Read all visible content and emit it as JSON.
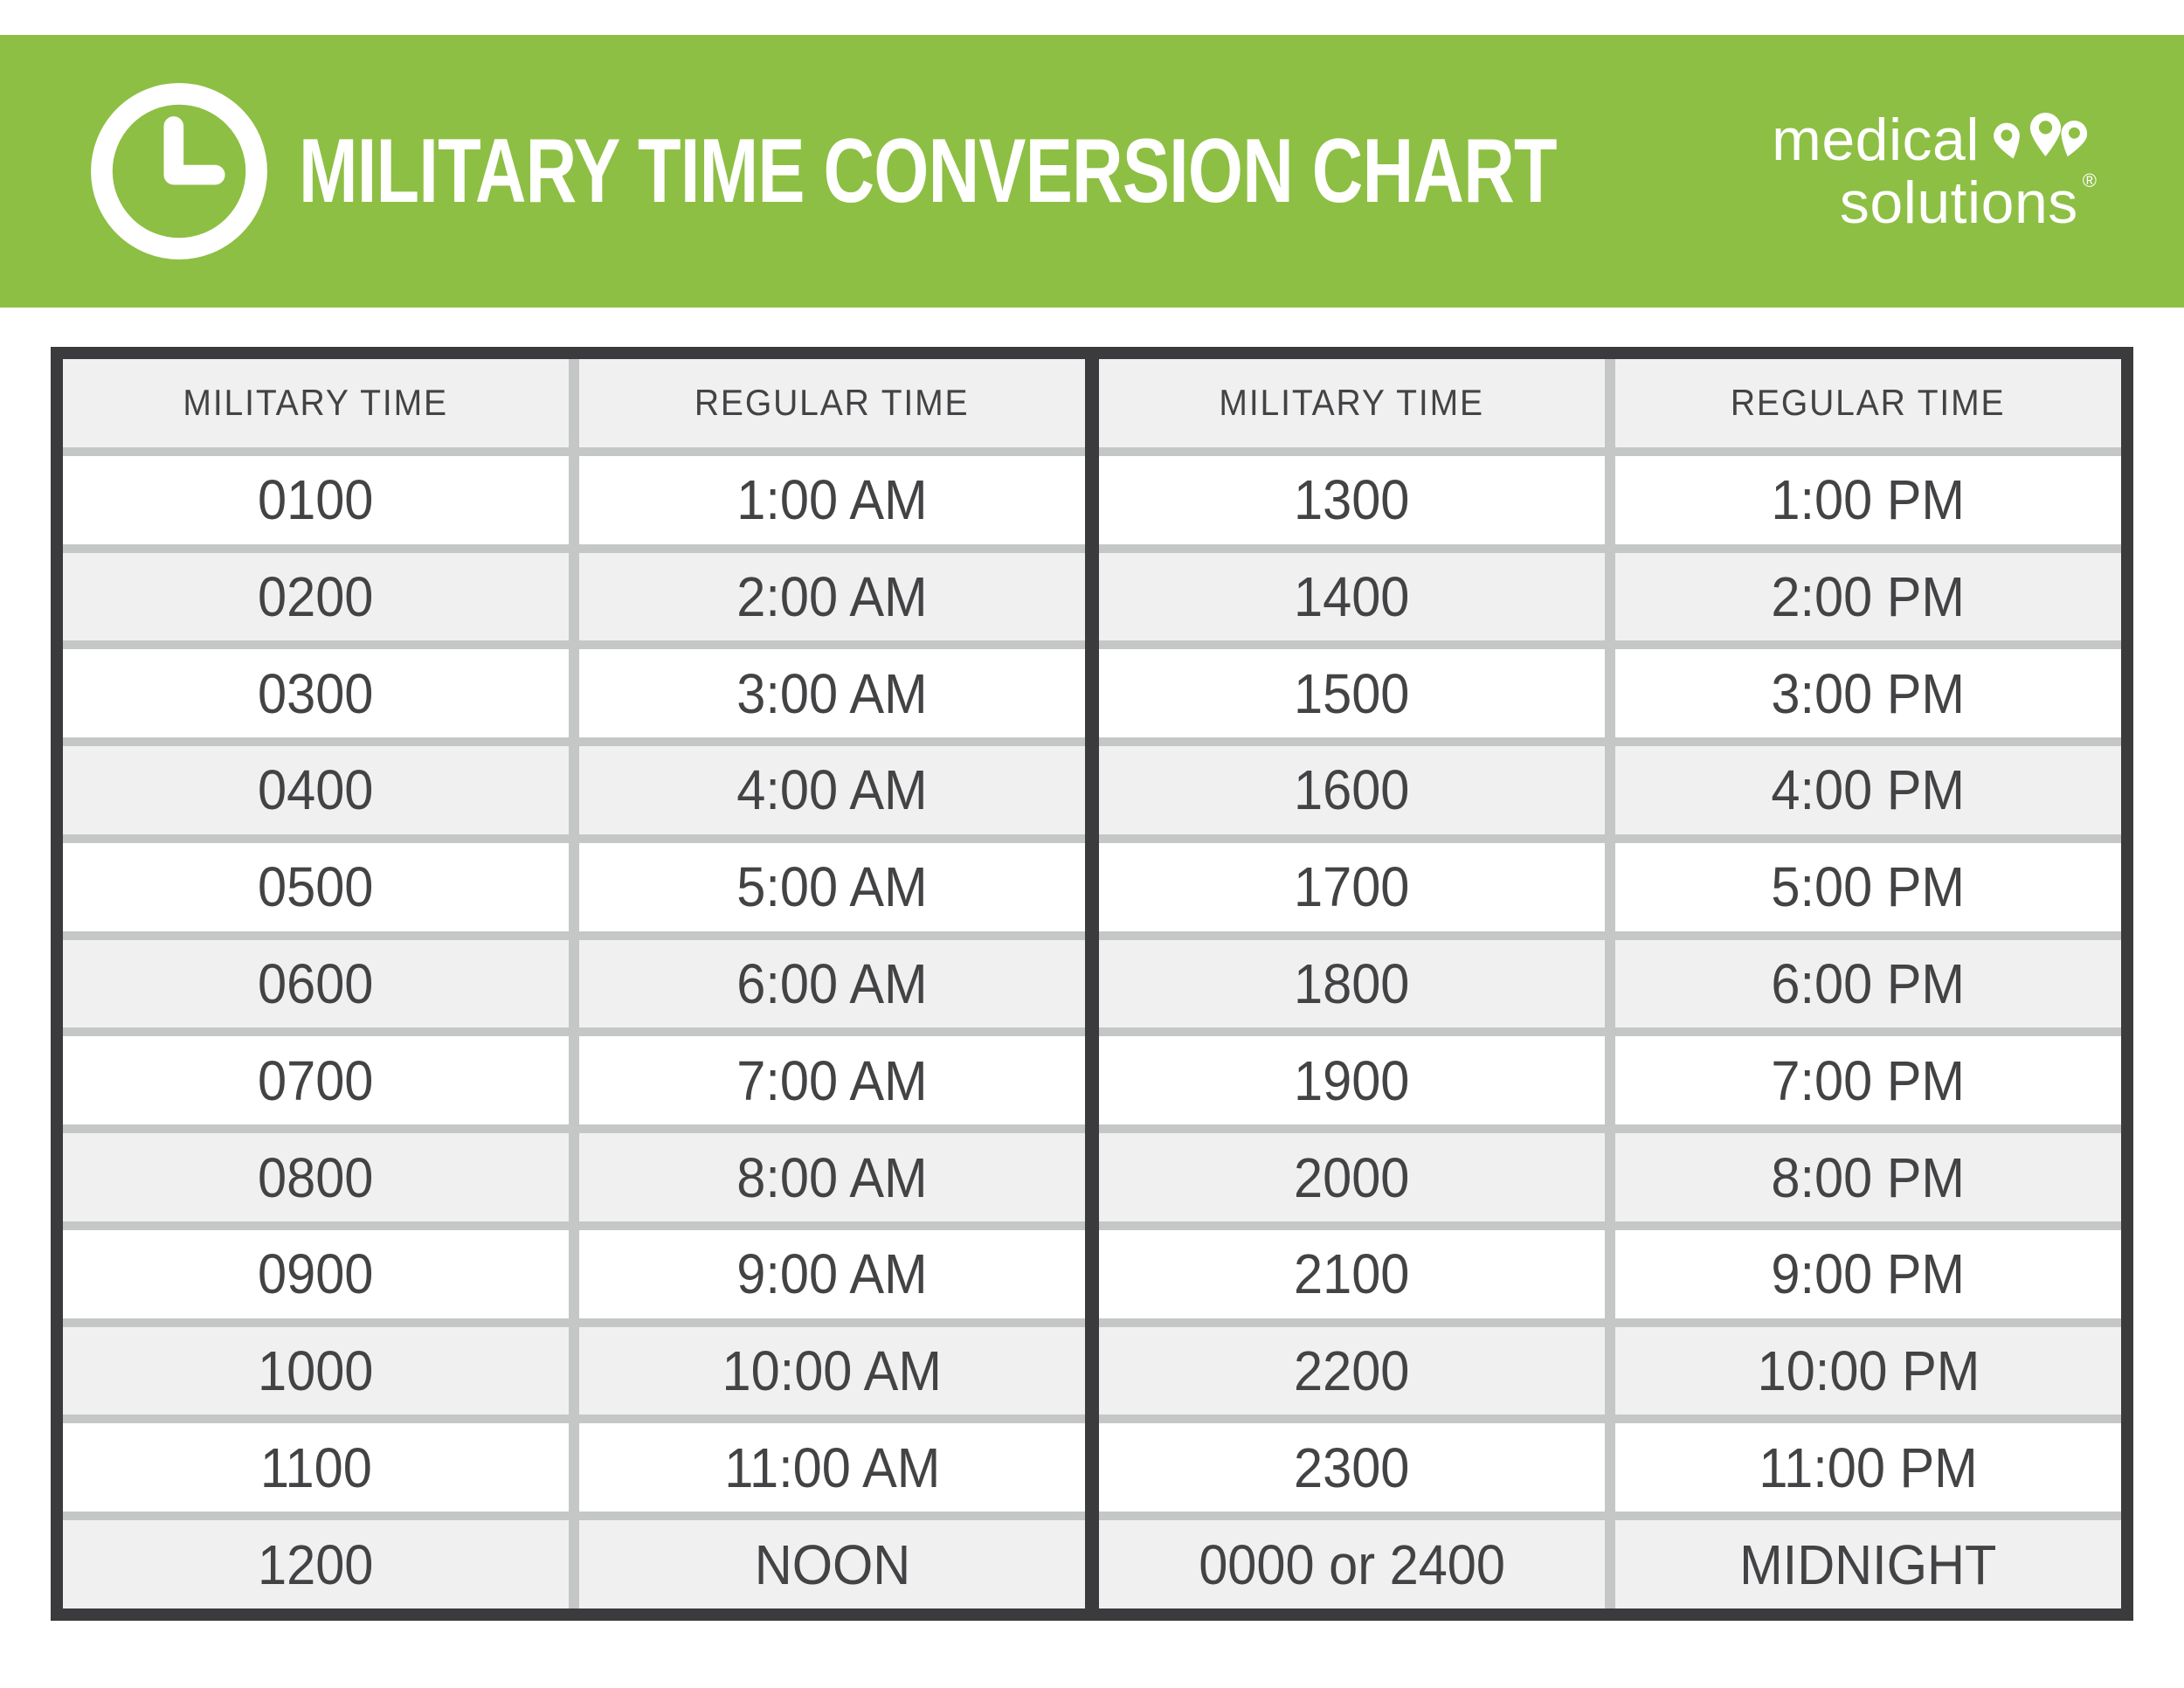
{
  "header": {
    "title": "MILITARY TIME CONVERSION CHART",
    "logo": {
      "line1": "medical",
      "line2": "solutions",
      "registered": "®"
    }
  },
  "colors": {
    "green": "#8dbf44",
    "dark": "#3b3b3d",
    "grid": "#c5c6c6",
    "cell_alt": "#f0f0f1",
    "text": "#434345",
    "white": "#ffffff"
  },
  "chart_data": {
    "type": "table",
    "title": "MILITARY TIME CONVERSION CHART",
    "columns": [
      "MILITARY TIME",
      "REGULAR TIME",
      "MILITARY TIME",
      "REGULAR TIME"
    ],
    "left": {
      "headers": [
        "MILITARY TIME",
        "REGULAR TIME"
      ],
      "rows": [
        [
          "0100",
          "1:00 AM"
        ],
        [
          "0200",
          "2:00 AM"
        ],
        [
          "0300",
          "3:00 AM"
        ],
        [
          "0400",
          "4:00 AM"
        ],
        [
          "0500",
          "5:00 AM"
        ],
        [
          "0600",
          "6:00 AM"
        ],
        [
          "0700",
          "7:00 AM"
        ],
        [
          "0800",
          "8:00 AM"
        ],
        [
          "0900",
          "9:00 AM"
        ],
        [
          "1000",
          "10:00 AM"
        ],
        [
          "1100",
          "11:00 AM"
        ],
        [
          "1200",
          "NOON"
        ]
      ]
    },
    "right": {
      "headers": [
        "MILITARY TIME",
        "REGULAR TIME"
      ],
      "rows": [
        [
          "1300",
          "1:00 PM"
        ],
        [
          "1400",
          "2:00 PM"
        ],
        [
          "1500",
          "3:00 PM"
        ],
        [
          "1600",
          "4:00 PM"
        ],
        [
          "1700",
          "5:00 PM"
        ],
        [
          "1800",
          "6:00 PM"
        ],
        [
          "1900",
          "7:00 PM"
        ],
        [
          "2000",
          "8:00 PM"
        ],
        [
          "2100",
          "9:00 PM"
        ],
        [
          "2200",
          "10:00 PM"
        ],
        [
          "2300",
          "11:00 PM"
        ],
        [
          "0000 or 2400",
          "MIDNIGHT"
        ]
      ]
    }
  }
}
